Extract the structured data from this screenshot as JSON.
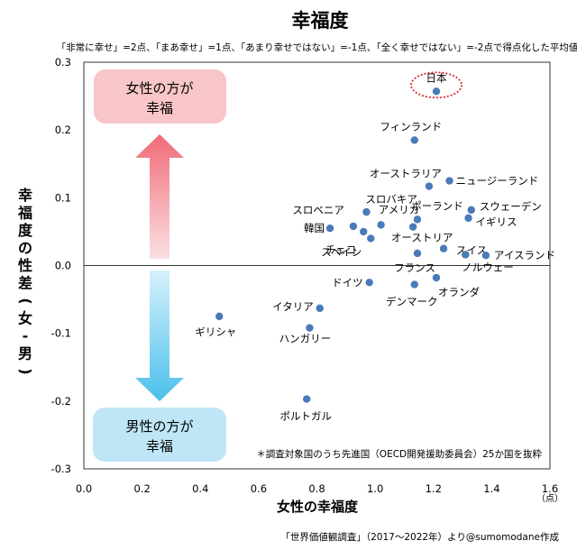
{
  "chart_data": {
    "type": "scatter",
    "title": "幸福度",
    "subtitle": "「非常に幸せ」=2点、「まあ幸せ」=1点、「あまり幸せではない」=-1点、「全く幸せではない」=-2点で得点化した平均値",
    "xlabel": "女性の幸福度",
    "ylabel": "幸福度の性差(女-男)",
    "x_unit": "（点）",
    "xlim": [
      0.0,
      1.6
    ],
    "ylim": [
      -0.3,
      0.3
    ],
    "x_ticks": [
      "0.0",
      "0.2",
      "0.4",
      "0.6",
      "0.8",
      "1.0",
      "1.2",
      "1.4",
      "1.6"
    ],
    "y_ticks": [
      "0.3",
      "0.2",
      "0.1",
      "0.0",
      "-0.1",
      "-0.2",
      "-0.3"
    ],
    "grid": false,
    "color": "#4a7ab8",
    "points": [
      {
        "label": "日本",
        "x": 1.21,
        "y": 0.257
      },
      {
        "label": "フィンランド",
        "x": 1.135,
        "y": 0.185
      },
      {
        "label": "オーストラリア",
        "x": 1.185,
        "y": 0.117
      },
      {
        "label": "ニュージーランド",
        "x": 1.255,
        "y": 0.125
      },
      {
        "label": "スロバキア",
        "x": 0.97,
        "y": 0.079
      },
      {
        "label": "スロベニア",
        "x": 0.925,
        "y": 0.058
      },
      {
        "label": "韓国",
        "x": 0.845,
        "y": 0.055
      },
      {
        "label": "チェコ",
        "x": 0.96,
        "y": 0.05
      },
      {
        "label": "アメリカ",
        "x": 1.02,
        "y": 0.06
      },
      {
        "label": "スペイン",
        "x": 0.985,
        "y": 0.04
      },
      {
        "label": "ポーランド",
        "x": 1.145,
        "y": 0.068
      },
      {
        "label": "オーストリア",
        "x": 1.13,
        "y": 0.057
      },
      {
        "label": "スウェーデン",
        "x": 1.33,
        "y": 0.082
      },
      {
        "label": "イギリス",
        "x": 1.32,
        "y": 0.07
      },
      {
        "label": "フランス",
        "x": 1.145,
        "y": 0.018
      },
      {
        "label": "スイス",
        "x": 1.235,
        "y": 0.025
      },
      {
        "label": "アイスランド",
        "x": 1.38,
        "y": 0.015
      },
      {
        "label": "ノルウェー",
        "x": 1.31,
        "y": 0.016
      },
      {
        "label": "ドイツ",
        "x": 0.98,
        "y": -0.025
      },
      {
        "label": "オランダ",
        "x": 1.21,
        "y": -0.018
      },
      {
        "label": "デンマーク",
        "x": 1.135,
        "y": -0.028
      },
      {
        "label": "イタリア",
        "x": 0.81,
        "y": -0.063
      },
      {
        "label": "ハンガリー",
        "x": 0.775,
        "y": -0.092
      },
      {
        "label": "ギリシャ",
        "x": 0.465,
        "y": -0.075
      },
      {
        "label": "ポルトガル",
        "x": 0.765,
        "y": -0.197
      }
    ],
    "annotations": {
      "top_box": [
        "女性の方が",
        "幸福"
      ],
      "bottom_box": [
        "男性の方が",
        "幸福"
      ],
      "note": "＊調査対象国のうち先進国（OECD開発援助委員会）25か国を抜粋",
      "source": "「世界価値観調査」（2017～2022年）より@sumomodane作成"
    },
    "highlight": "日本",
    "colors": {
      "top_box": "#f9c6c8",
      "top_arrow": "#f47b86",
      "bottom_box": "#bfe6f7",
      "bottom_arrow": "#6ccdf0",
      "highlight_ring": "#e0282e"
    }
  }
}
